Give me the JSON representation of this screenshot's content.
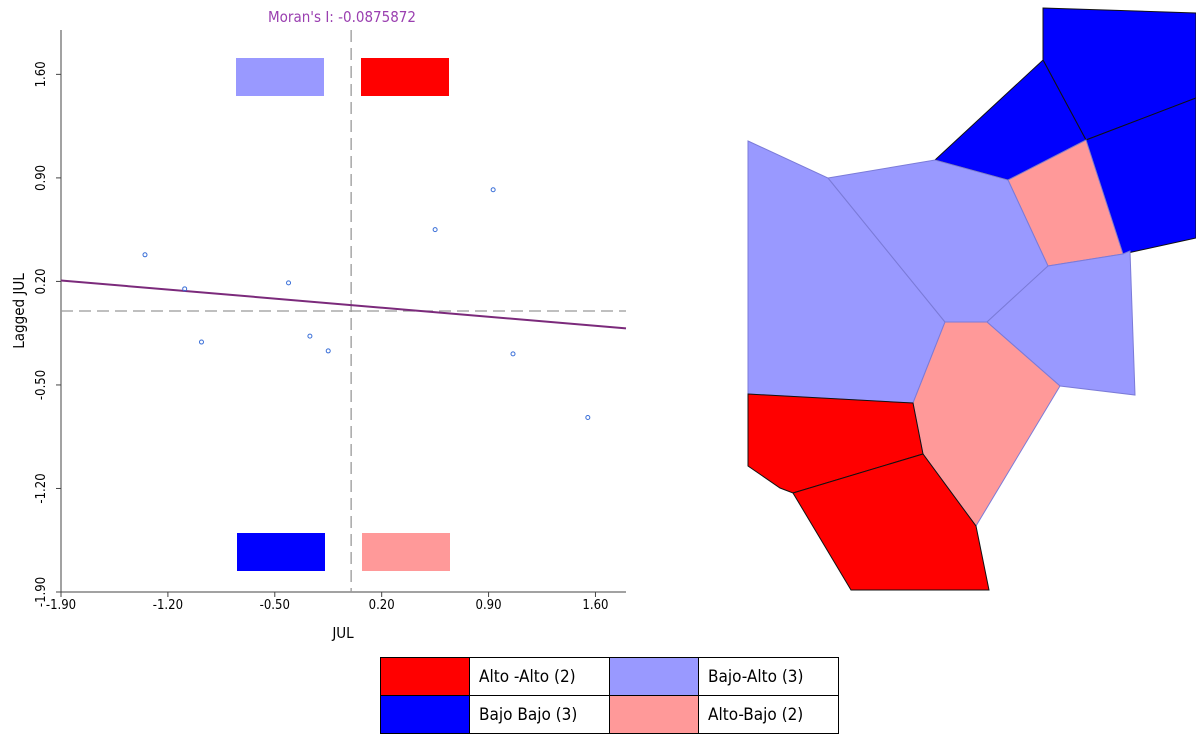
{
  "chart_data": {
    "type": "scatter",
    "title": "Moran's I: -0.0875872",
    "xlabel": "JUL",
    "ylabel": "Lagged JUL",
    "xlim": [
      -1.9,
      1.8
    ],
    "ylim": [
      -1.9,
      1.9
    ],
    "x_ticks": [
      "-1.90",
      "-1.20",
      "-0.50",
      "0.20",
      "0.90",
      "1.60"
    ],
    "y_ticks": [
      "-1.90",
      "-1.20",
      "-0.50",
      "0.20",
      "0.90",
      "1.60"
    ],
    "x_tick_values": [
      -1.9,
      -1.2,
      -0.5,
      0.2,
      0.9,
      1.6
    ],
    "y_tick_values": [
      -1.9,
      -1.2,
      -0.5,
      0.2,
      0.9,
      1.6
    ],
    "mean_x": 0.0,
    "mean_y": 0.0,
    "points": [
      {
        "x": -1.35,
        "y": 0.38
      },
      {
        "x": -1.09,
        "y": 0.15
      },
      {
        "x": -0.98,
        "y": -0.21
      },
      {
        "x": -0.41,
        "y": 0.19
      },
      {
        "x": -0.27,
        "y": -0.17
      },
      {
        "x": -0.15,
        "y": -0.27
      },
      {
        "x": 0.55,
        "y": 0.55
      },
      {
        "x": 0.93,
        "y": 0.82
      },
      {
        "x": 1.06,
        "y": -0.29
      },
      {
        "x": 1.55,
        "y": -0.72
      }
    ],
    "regression": {
      "slope": -0.0875872,
      "intercept": 0.04
    },
    "line_color": "#7b2a7b",
    "point_color": "#3a6fd8",
    "quadrant_colors": {
      "upper_left": "#9999ff",
      "upper_right": "#ff0000",
      "lower_left": "#0000ff",
      "lower_right": "#ff9999"
    }
  },
  "map": {
    "polygons": [
      {
        "id": "top-right-1",
        "cls": "bajo-bajo"
      },
      {
        "id": "top-left-small",
        "cls": "bajo-bajo"
      },
      {
        "id": "right-mid",
        "cls": "bajo-bajo"
      },
      {
        "id": "center-pink-top",
        "cls": "alto-bajo"
      },
      {
        "id": "west-large",
        "cls": "bajo-alto"
      },
      {
        "id": "center",
        "cls": "bajo-alto"
      },
      {
        "id": "east",
        "cls": "bajo-alto"
      },
      {
        "id": "center-pink-bottom",
        "cls": "alto-bajo"
      },
      {
        "id": "southwest",
        "cls": "alto-alto"
      },
      {
        "id": "south",
        "cls": "alto-alto"
      }
    ],
    "colors": {
      "alto-alto": "#ff0000",
      "bajo-alto": "#9999ff",
      "bajo-bajo": "#0000ff",
      "alto-bajo": "#ff9999"
    }
  },
  "legend": {
    "alto_alto": {
      "label": "Alto -Alto (2)",
      "color": "#ff0000"
    },
    "bajo_alto": {
      "label": "Bajo-Alto (3)",
      "color": "#9999ff"
    },
    "bajo_bajo": {
      "label": "Bajo Bajo (3)",
      "color": "#0000ff"
    },
    "alto_bajo": {
      "label": "Alto-Bajo (2)",
      "color": "#ff9999"
    }
  }
}
